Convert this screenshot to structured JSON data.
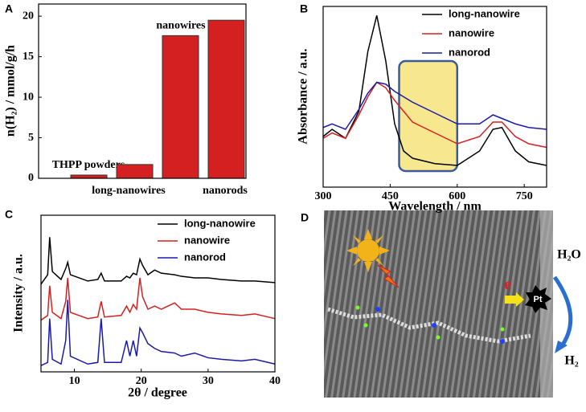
{
  "chart_data": [
    {
      "type": "bar",
      "panel_label": "A",
      "y_label": "n(H₂) / mmol/g/h",
      "categories": [
        "THPP powders",
        "long-nanowires",
        "nanowires",
        "nanorods"
      ],
      "values": [
        0.4,
        1.7,
        17.6,
        19.5
      ],
      "color": "#d42020",
      "ylim": [
        0,
        21.5
      ],
      "yticks": [
        0,
        5,
        10,
        15,
        20
      ]
    },
    {
      "type": "line",
      "panel_label": "B",
      "x_label": "Wavelength / nm",
      "y_label": "Absorbance / a.u.",
      "x": [
        300,
        320,
        350,
        380,
        400,
        420,
        440,
        460,
        480,
        500,
        550,
        600,
        650,
        680,
        700,
        730,
        760,
        800
      ],
      "series": [
        {
          "name": "long-nanowire",
          "color": "#000000",
          "values": [
            0.28,
            0.32,
            0.27,
            0.42,
            0.75,
            0.95,
            0.7,
            0.35,
            0.2,
            0.16,
            0.13,
            0.12,
            0.2,
            0.32,
            0.33,
            0.2,
            0.14,
            0.12
          ]
        },
        {
          "name": "nanowire",
          "color": "#d42020",
          "values": [
            0.27,
            0.3,
            0.27,
            0.4,
            0.5,
            0.58,
            0.55,
            0.48,
            0.42,
            0.36,
            0.3,
            0.24,
            0.28,
            0.36,
            0.36,
            0.28,
            0.24,
            0.22
          ]
        },
        {
          "name": "nanorod",
          "color": "#1a1aa8",
          "values": [
            0.33,
            0.35,
            0.32,
            0.43,
            0.52,
            0.58,
            0.57,
            0.53,
            0.5,
            0.47,
            0.41,
            0.35,
            0.35,
            0.4,
            0.38,
            0.35,
            0.33,
            0.32
          ]
        }
      ],
      "xlim": [
        300,
        800
      ],
      "xticks": [
        300,
        450,
        600,
        750
      ],
      "ylim": [
        0,
        1
      ]
    },
    {
      "type": "line",
      "panel_label": "C",
      "x_label": "2θ / degree",
      "y_label": "Intensity / a.u.",
      "x": [
        5,
        6,
        6.3,
        6.7,
        8,
        8.7,
        9,
        9.4,
        12,
        13.5,
        14,
        14.5,
        17,
        17.8,
        18.3,
        18.8,
        19.3,
        19.8,
        20.2,
        21,
        22,
        23,
        25,
        26,
        28,
        30,
        32,
        35,
        37,
        40
      ],
      "series": [
        {
          "name": "long-nanowire",
          "color": "#000000",
          "values": [
            0.56,
            0.62,
            0.86,
            0.64,
            0.59,
            0.66,
            0.7,
            0.62,
            0.58,
            0.59,
            0.63,
            0.58,
            0.58,
            0.61,
            0.6,
            0.63,
            0.62,
            0.72,
            0.68,
            0.62,
            0.65,
            0.63,
            0.62,
            0.61,
            0.6,
            0.6,
            0.59,
            0.58,
            0.58,
            0.57
          ]
        },
        {
          "name": "nanowire",
          "color": "#d42020",
          "values": [
            0.33,
            0.36,
            0.55,
            0.38,
            0.34,
            0.45,
            0.6,
            0.38,
            0.34,
            0.35,
            0.45,
            0.35,
            0.36,
            0.42,
            0.38,
            0.43,
            0.4,
            0.6,
            0.48,
            0.4,
            0.42,
            0.4,
            0.44,
            0.4,
            0.4,
            0.38,
            0.37,
            0.36,
            0.37,
            0.34
          ]
        },
        {
          "name": "nanorod",
          "color": "#1a1aa8",
          "values": [
            0.04,
            0.06,
            0.34,
            0.08,
            0.05,
            0.2,
            0.46,
            0.1,
            0.05,
            0.06,
            0.34,
            0.06,
            0.06,
            0.2,
            0.1,
            0.2,
            0.1,
            0.28,
            0.25,
            0.18,
            0.15,
            0.13,
            0.12,
            0.1,
            0.12,
            0.09,
            0.08,
            0.07,
            0.08,
            0.05
          ]
        }
      ],
      "xlim": [
        5,
        40
      ],
      "xticks": [
        10,
        20,
        30,
        40
      ],
      "ylim": [
        0,
        1
      ]
    }
  ],
  "panel_d": {
    "panel_label": "D",
    "electron": "e",
    "catalyst": "Pt",
    "reactant": "H₂O",
    "product": "H₂"
  }
}
